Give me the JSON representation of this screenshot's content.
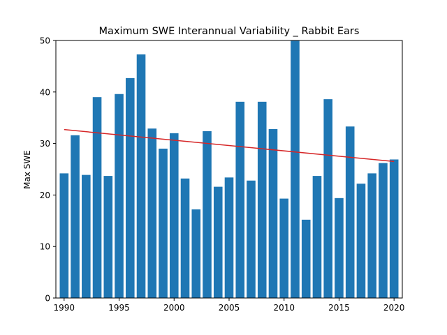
{
  "chart_data": {
    "type": "bar",
    "title": "Maximum SWE Interannual Variability _ Rabbit Ears",
    "xlabel": "",
    "ylabel": "Max SWE",
    "x": [
      1990,
      1991,
      1992,
      1993,
      1994,
      1995,
      1996,
      1997,
      1998,
      1999,
      2000,
      2001,
      2002,
      2003,
      2004,
      2005,
      2006,
      2007,
      2008,
      2009,
      2010,
      2011,
      2012,
      2013,
      2014,
      2015,
      2016,
      2017,
      2018,
      2019,
      2020
    ],
    "values": [
      24.2,
      31.6,
      23.9,
      39.0,
      23.7,
      39.6,
      42.7,
      47.3,
      32.9,
      29.0,
      32.0,
      23.2,
      17.2,
      32.4,
      21.6,
      23.4,
      38.1,
      22.8,
      38.1,
      32.8,
      19.3,
      50.0,
      15.2,
      23.7,
      38.6,
      19.4,
      33.3,
      22.2,
      24.2,
      26.2,
      26.9
    ],
    "trend": {
      "x": [
        1990,
        2020
      ],
      "y": [
        32.7,
        26.5
      ]
    },
    "xlim": [
      1989.25,
      2020.75
    ],
    "ylim": [
      0,
      50
    ],
    "xticks": [
      1990,
      1995,
      2000,
      2005,
      2010,
      2015,
      2020
    ],
    "yticks": [
      0,
      10,
      20,
      30,
      40,
      50
    ],
    "bar_color": "#1f77b4",
    "trend_color": "#d62728",
    "grid": false,
    "legend": "none"
  }
}
